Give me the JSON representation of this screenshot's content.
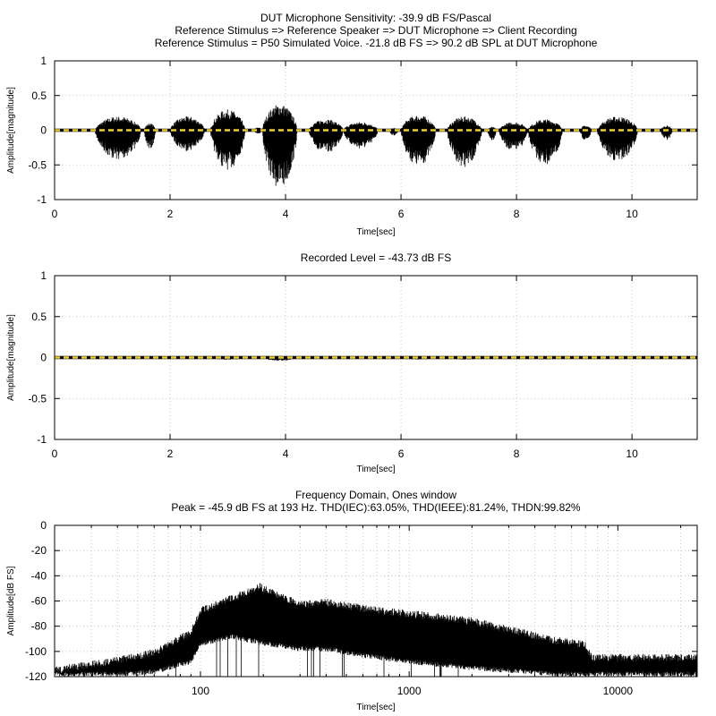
{
  "chart_data": [
    {
      "type": "line",
      "title_lines": [
        "DUT Microphone Sensitivity: -39.9 dB FS/Pascal",
        "Reference Stimulus => Reference Speaker => DUT Microphone => Client Recording",
        "Reference Stimulus = P50 Simulated Voice. -21.8 dB FS => 90.2 dB SPL at DUT Microphone"
      ],
      "xlabel": "Time[sec]",
      "ylabel": "Amplitude[magnitude]",
      "xlim": [
        0,
        11.13
      ],
      "ylim": [
        -1,
        1
      ],
      "xticks": [
        "0",
        "2",
        "4",
        "6",
        "8",
        "10"
      ],
      "yticks": [
        "1",
        "0.5",
        "0",
        "-0.5",
        "-1"
      ],
      "grid": true,
      "series": [
        {
          "name": "waveform envelope",
          "color": "#000000",
          "segments": [
            [
              0.7,
              1.5,
              0.2,
              -0.43
            ],
            [
              1.55,
              1.75,
              0.1,
              -0.27
            ],
            [
              2.0,
              2.6,
              0.2,
              -0.3
            ],
            [
              2.7,
              3.3,
              0.3,
              -0.57
            ],
            [
              3.45,
              3.6,
              0.04,
              -0.05
            ],
            [
              3.6,
              4.2,
              0.38,
              -0.85
            ],
            [
              4.4,
              5.0,
              0.16,
              -0.33
            ],
            [
              5.0,
              5.6,
              0.12,
              -0.27
            ],
            [
              5.8,
              5.95,
              0.03,
              -0.08
            ],
            [
              6.0,
              6.6,
              0.22,
              -0.52
            ],
            [
              6.8,
              7.4,
              0.2,
              -0.53
            ],
            [
              7.5,
              7.65,
              0.05,
              -0.15
            ],
            [
              7.7,
              8.2,
              0.12,
              -0.3
            ],
            [
              8.2,
              8.8,
              0.16,
              -0.5
            ],
            [
              9.1,
              9.3,
              0.07,
              -0.15
            ],
            [
              9.4,
              10.1,
              0.2,
              -0.45
            ],
            [
              10.3,
              10.4,
              0.02,
              -0.03
            ],
            [
              10.5,
              10.7,
              0.07,
              -0.14
            ]
          ]
        },
        {
          "name": "zero reference",
          "color": "#f0d020",
          "y": 0
        }
      ]
    },
    {
      "type": "line",
      "title_lines": [
        "Recorded Level = -43.73 dB FS"
      ],
      "xlabel": "Time[sec]",
      "ylabel": "Amplitude[magnitude]",
      "xlim": [
        0,
        11.13
      ],
      "ylim": [
        -1,
        1
      ],
      "xticks": [
        "0",
        "2",
        "4",
        "6",
        "8",
        "10"
      ],
      "yticks": [
        "1",
        "0.5",
        "0",
        "-0.5",
        "-1"
      ],
      "grid": true,
      "series": [
        {
          "name": "recorded envelope",
          "color": "#000000",
          "scale": 0.045
        },
        {
          "name": "zero reference",
          "color": "#f0d020",
          "y": 0
        }
      ]
    },
    {
      "type": "line",
      "title_lines": [
        "Frequency Domain, Ones window",
        "Peak = -45.9 dB FS at 193 Hz. THD(IEC):63.05%, THD(IEEE):81.24%, THDN:99.82%"
      ],
      "xlabel": "Time[sec]",
      "ylabel": "Amplitude[dB FS]",
      "xscale": "log",
      "xlim": [
        20,
        24000
      ],
      "ylim": [
        -120,
        0
      ],
      "xticks": [
        "100",
        "1000",
        "10000"
      ],
      "yticks": [
        "0",
        "-20",
        "-40",
        "-60",
        "-80",
        "-100",
        "-120"
      ],
      "grid": true,
      "series": [
        {
          "name": "spectrum envelope",
          "color": "#000000",
          "points": [
            [
              20,
              -112,
              -120
            ],
            [
              40,
              -104,
              -120
            ],
            [
              60,
              -98,
              -118
            ],
            [
              90,
              -82,
              -110
            ],
            [
              100,
              -65,
              -96
            ],
            [
              140,
              -55,
              -90
            ],
            [
              193,
              -46,
              -95
            ],
            [
              300,
              -60,
              -100
            ],
            [
              400,
              -58,
              -100
            ],
            [
              600,
              -63,
              -105
            ],
            [
              1000,
              -67,
              -110
            ],
            [
              2000,
              -73,
              -115
            ],
            [
              5000,
              -88,
              -120
            ],
            [
              7000,
              -92,
              -120
            ],
            [
              7500,
              -102,
              -120
            ],
            [
              24000,
              -102,
              -120
            ]
          ]
        }
      ]
    }
  ]
}
